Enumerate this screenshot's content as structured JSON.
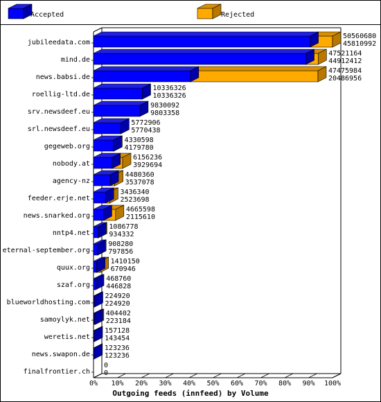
{
  "colors": {
    "accepted": "#0000ff",
    "accepted_side": "#0000a8",
    "accepted_top": "#2020e0",
    "rejected": "#ffaa00",
    "rejected_side": "#b87800",
    "rejected_top": "#d89000",
    "background": "#ffffff",
    "frame": "#000000"
  },
  "chart_data": {
    "type": "bar",
    "orientation": "horizontal",
    "stacked": true,
    "title": "",
    "xlabel": "Outgoing feeds (innfeed) by Volume",
    "ylabel": "",
    "xlim": [
      0,
      100
    ],
    "x_ticks": [
      "0%",
      "10%",
      "20%",
      "30%",
      "40%",
      "50%",
      "60%",
      "70%",
      "80%",
      "90%",
      "100%"
    ],
    "legend": {
      "placement": "top",
      "entries": [
        "Accepted",
        "Rejected"
      ]
    },
    "categories": [
      "jubileedata.com",
      "mind.de",
      "news.babsi.de",
      "roellig-ltd.de",
      "srv.newsdeef.eu",
      "srl.newsdeef.eu",
      "gegeweb.org",
      "nobody.at",
      "agency-nz",
      "feeder.erje.net",
      "news.snarked.org",
      "nntp4.net",
      "eternal-september.org",
      "quux.org",
      "szaf.org",
      "blueworldhosting.com",
      "samoylyk.net",
      "weretis.net",
      "news.swapon.de",
      "finalfrontier.ch"
    ],
    "offered": [
      50560680,
      47521164,
      47475984,
      10336326,
      9830092,
      5772906,
      4330598,
      6156236,
      4480360,
      3436340,
      4665598,
      1086778,
      908280,
      1410150,
      468760,
      224920,
      404402,
      157128,
      123236,
      0
    ],
    "accepted": [
      45810992,
      44912412,
      20486956,
      10336326,
      9803358,
      5770438,
      4179780,
      3929694,
      3537078,
      2523698,
      2115610,
      934332,
      797856,
      670946,
      446828,
      224920,
      223184,
      143454,
      123236,
      0
    ],
    "value_labels": [
      [
        "50560680",
        "45810992"
      ],
      [
        "47521164",
        "44912412"
      ],
      [
        "47475984",
        "20486956"
      ],
      [
        "10336326",
        "10336326"
      ],
      [
        "9830092",
        "9803358"
      ],
      [
        "5772906",
        "5770438"
      ],
      [
        "4330598",
        "4179780"
      ],
      [
        "6156236",
        "3929694"
      ],
      [
        "4480360",
        "3537078"
      ],
      [
        "3436340",
        "2523698"
      ],
      [
        "4665598",
        "2115610"
      ],
      [
        "1086778",
        "934332"
      ],
      [
        "908280",
        "797856"
      ],
      [
        "1410150",
        "670946"
      ],
      [
        "468760",
        "446828"
      ],
      [
        "224920",
        "224920"
      ],
      [
        "404402",
        "223184"
      ],
      [
        "157128",
        "143454"
      ],
      [
        "123236",
        "123236"
      ],
      [
        "0",
        "0"
      ]
    ]
  }
}
